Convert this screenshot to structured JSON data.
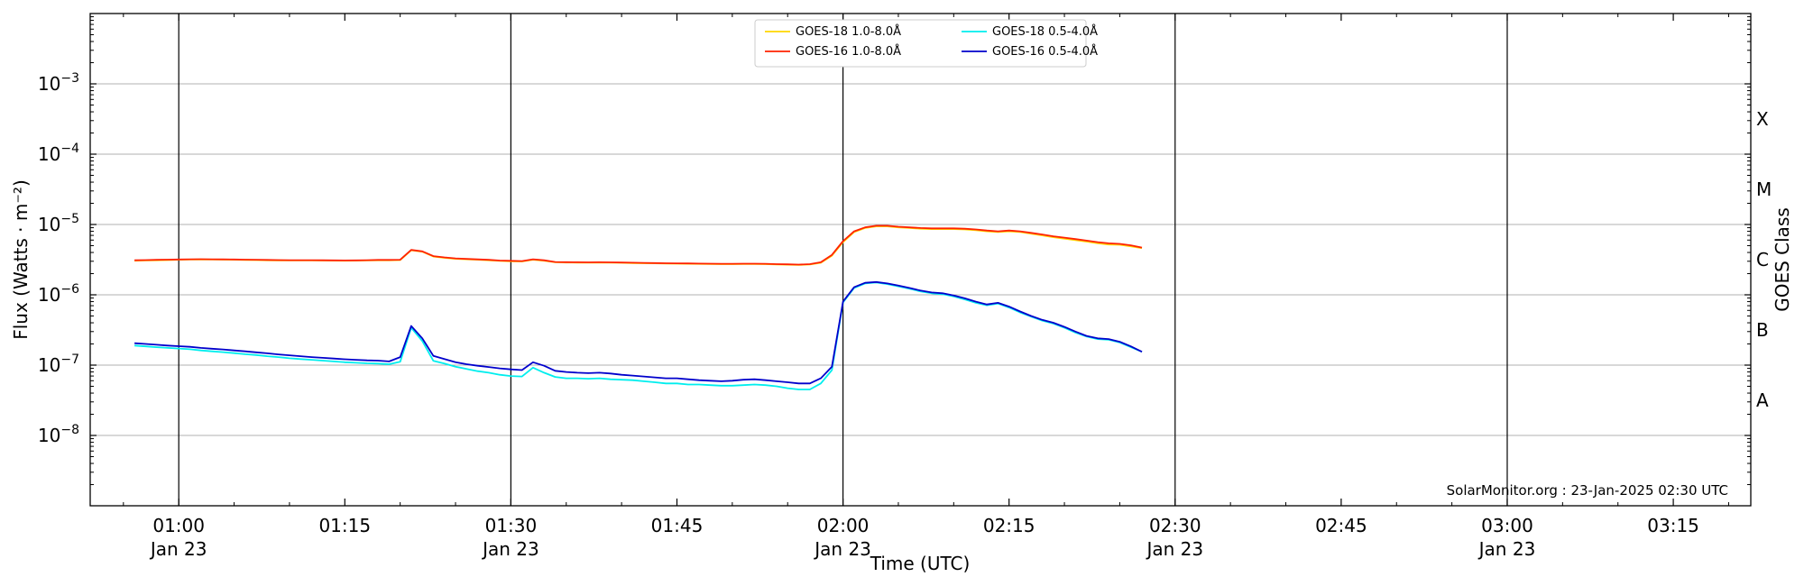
{
  "chart_data": {
    "type": "line",
    "title": "",
    "xlabel": "Time (UTC)",
    "ylabel": "Flux (Watts · m⁻²)",
    "y2label": "GOES Class",
    "yscale": "log",
    "ylim": [
      1e-09,
      0.01
    ],
    "xlim": [
      "00:52",
      "03:22"
    ],
    "grid": "horizontal",
    "legend_position": "top-center",
    "credit": "SolarMonitor.org : 23-Jan-2025 02:30 UTC",
    "y_ticks": [
      {
        "value": 1e-08,
        "base": "10",
        "exp": "−8"
      },
      {
        "value": 1e-07,
        "base": "10",
        "exp": "−7"
      },
      {
        "value": 1e-06,
        "base": "10",
        "exp": "−6"
      },
      {
        "value": 1e-05,
        "base": "10",
        "exp": "−5"
      },
      {
        "value": 0.0001,
        "base": "10",
        "exp": "−4"
      },
      {
        "value": 0.001,
        "base": "10",
        "exp": "−3"
      }
    ],
    "goes_classes": [
      {
        "label": "A",
        "value": 1e-08
      },
      {
        "label": "B",
        "value": 1e-07
      },
      {
        "label": "C",
        "value": 1e-06
      },
      {
        "label": "M",
        "value": 1e-05
      },
      {
        "label": "X",
        "value": 0.0001
      }
    ],
    "x_ticks": [
      {
        "time": "01:00",
        "label": "01:00",
        "sublabel": "Jan 23",
        "major": true
      },
      {
        "time": "01:15",
        "label": "01:15",
        "sublabel": "",
        "major": false
      },
      {
        "time": "01:30",
        "label": "01:30",
        "sublabel": "Jan 23",
        "major": true
      },
      {
        "time": "01:45",
        "label": "01:45",
        "sublabel": "",
        "major": false
      },
      {
        "time": "02:00",
        "label": "02:00",
        "sublabel": "Jan 23",
        "major": true
      },
      {
        "time": "02:15",
        "label": "02:15",
        "sublabel": "",
        "major": false
      },
      {
        "time": "02:30",
        "label": "02:30",
        "sublabel": "Jan 23",
        "major": true
      },
      {
        "time": "02:45",
        "label": "02:45",
        "sublabel": "",
        "major": false
      },
      {
        "time": "03:00",
        "label": "03:00",
        "sublabel": "Jan 23",
        "major": true
      },
      {
        "time": "03:15",
        "label": "03:15",
        "sublabel": "",
        "major": false
      }
    ],
    "x": [
      "00:56",
      "00:57",
      "00:58",
      "00:59",
      "01:00",
      "01:01",
      "01:02",
      "01:03",
      "01:04",
      "01:05",
      "01:06",
      "01:07",
      "01:08",
      "01:09",
      "01:10",
      "01:11",
      "01:12",
      "01:13",
      "01:14",
      "01:15",
      "01:16",
      "01:17",
      "01:18",
      "01:19",
      "01:20",
      "01:21",
      "01:22",
      "01:23",
      "01:24",
      "01:25",
      "01:26",
      "01:27",
      "01:28",
      "01:29",
      "01:30",
      "01:31",
      "01:32",
      "01:33",
      "01:34",
      "01:35",
      "01:36",
      "01:37",
      "01:38",
      "01:39",
      "01:40",
      "01:41",
      "01:42",
      "01:43",
      "01:44",
      "01:45",
      "01:46",
      "01:47",
      "01:48",
      "01:49",
      "01:50",
      "01:51",
      "01:52",
      "01:53",
      "01:54",
      "01:55",
      "01:56",
      "01:57",
      "01:58",
      "01:59",
      "02:00",
      "02:01",
      "02:02",
      "02:03",
      "02:04",
      "02:05",
      "02:06",
      "02:07",
      "02:08",
      "02:09",
      "02:10",
      "02:11",
      "02:12",
      "02:13",
      "02:14",
      "02:15",
      "02:16",
      "02:17",
      "02:18",
      "02:19",
      "02:20",
      "02:21",
      "02:22",
      "02:23",
      "02:24",
      "02:25",
      "02:26",
      "02:27"
    ],
    "series": [
      {
        "name": "GOES-18 1.0-8.0Å",
        "color": "#ffd700",
        "values": [
          3.05e-06,
          3.08e-06,
          3.1e-06,
          3.12e-06,
          3.15e-06,
          3.17e-06,
          3.18e-06,
          3.17e-06,
          3.16e-06,
          3.15e-06,
          3.13e-06,
          3.12e-06,
          3.1e-06,
          3.09e-06,
          3.08e-06,
          3.08e-06,
          3.08e-06,
          3.07e-06,
          3.06e-06,
          3.05e-06,
          3.06e-06,
          3.08e-06,
          3.1e-06,
          3.1e-06,
          3.12e-06,
          4.3e-06,
          4.1e-06,
          3.5e-06,
          3.35e-06,
          3.25e-06,
          3.2e-06,
          3.15e-06,
          3.1e-06,
          3.03e-06,
          3e-06,
          2.98e-06,
          3.15e-06,
          3.05e-06,
          2.9e-06,
          2.88e-06,
          2.87e-06,
          2.86e-06,
          2.87e-06,
          2.86e-06,
          2.85e-06,
          2.83e-06,
          2.81e-06,
          2.8e-06,
          2.78e-06,
          2.77e-06,
          2.76e-06,
          2.75e-06,
          2.74e-06,
          2.73e-06,
          2.73e-06,
          2.74e-06,
          2.74e-06,
          2.73e-06,
          2.7e-06,
          2.68e-06,
          2.66e-06,
          2.7e-06,
          2.85e-06,
          3.6e-06,
          5.6e-06,
          7.8e-06,
          8.9e-06,
          9.4e-06,
          9.4e-06,
          9.1e-06,
          8.9e-06,
          8.7e-06,
          8.6e-06,
          8.6e-06,
          8.6e-06,
          8.5e-06,
          8.3e-06,
          8e-06,
          7.8e-06,
          8e-06,
          7.8e-06,
          7.4e-06,
          7e-06,
          6.6e-06,
          6.3e-06,
          6e-06,
          5.7e-06,
          5.4e-06,
          5.2e-06,
          5.15e-06,
          4.9e-06,
          4.6e-06
        ]
      },
      {
        "name": "GOES-16 1.0-8.0Å",
        "color": "#ff2200",
        "values": [
          3.1e-06,
          3.12e-06,
          3.14e-06,
          3.16e-06,
          3.18e-06,
          3.2e-06,
          3.21e-06,
          3.2e-06,
          3.19e-06,
          3.18e-06,
          3.16e-06,
          3.15e-06,
          3.13e-06,
          3.12e-06,
          3.11e-06,
          3.11e-06,
          3.11e-06,
          3.1e-06,
          3.09e-06,
          3.08e-06,
          3.09e-06,
          3.11e-06,
          3.13e-06,
          3.13e-06,
          3.15e-06,
          4.35e-06,
          4.15e-06,
          3.55e-06,
          3.4e-06,
          3.3e-06,
          3.24e-06,
          3.19e-06,
          3.14e-06,
          3.07e-06,
          3.04e-06,
          3.02e-06,
          3.2e-06,
          3.1e-06,
          2.93e-06,
          2.91e-06,
          2.9e-06,
          2.89e-06,
          2.9e-06,
          2.89e-06,
          2.88e-06,
          2.86e-06,
          2.84e-06,
          2.83e-06,
          2.81e-06,
          2.8e-06,
          2.79e-06,
          2.78e-06,
          2.77e-06,
          2.76e-06,
          2.76e-06,
          2.77e-06,
          2.77e-06,
          2.76e-06,
          2.73e-06,
          2.71e-06,
          2.69e-06,
          2.73e-06,
          2.9e-06,
          3.7e-06,
          5.8e-06,
          8e-06,
          9.1e-06,
          9.6e-06,
          9.6e-06,
          9.3e-06,
          9.1e-06,
          8.9e-06,
          8.8e-06,
          8.8e-06,
          8.8e-06,
          8.7e-06,
          8.5e-06,
          8.2e-06,
          8e-06,
          8.2e-06,
          8e-06,
          7.6e-06,
          7.2e-06,
          6.8e-06,
          6.5e-06,
          6.2e-06,
          5.9e-06,
          5.6e-06,
          5.4e-06,
          5.3e-06,
          5.05e-06,
          4.7e-06
        ]
      },
      {
        "name": "GOES-18 0.5-4.0Å",
        "color": "#00eeee",
        "values": [
          1.9e-07,
          1.85e-07,
          1.8e-07,
          1.76e-07,
          1.72e-07,
          1.68e-07,
          1.62e-07,
          1.57e-07,
          1.53e-07,
          1.48e-07,
          1.43e-07,
          1.39e-07,
          1.34e-07,
          1.3e-07,
          1.25e-07,
          1.22e-07,
          1.19e-07,
          1.16e-07,
          1.13e-07,
          1.1e-07,
          1.08e-07,
          1.06e-07,
          1.05e-07,
          1.03e-07,
          1.12e-07,
          3.4e-07,
          2.2e-07,
          1.15e-07,
          1.05e-07,
          9.5e-08,
          8.8e-08,
          8.2e-08,
          7.8e-08,
          7.3e-08,
          7e-08,
          6.9e-08,
          9.2e-08,
          7.8e-08,
          6.8e-08,
          6.5e-08,
          6.5e-08,
          6.4e-08,
          6.5e-08,
          6.3e-08,
          6.2e-08,
          6.1e-08,
          5.9e-08,
          5.7e-08,
          5.5e-08,
          5.5e-08,
          5.3e-08,
          5.3e-08,
          5.2e-08,
          5.1e-08,
          5.1e-08,
          5.2e-08,
          5.3e-08,
          5.2e-08,
          5e-08,
          4.7e-08,
          4.5e-08,
          4.5e-08,
          5.5e-08,
          8.5e-08,
          7.8e-07,
          1.25e-06,
          1.45e-06,
          1.5e-06,
          1.42e-06,
          1.32e-06,
          1.22e-06,
          1.12e-06,
          1.05e-06,
          1.02e-06,
          9.5e-07,
          8.6e-07,
          7.7e-07,
          7.1e-07,
          7.5e-07,
          6.6e-07,
          5.6e-07,
          4.9e-07,
          4.3e-07,
          3.9e-07,
          3.4e-07,
          2.9e-07,
          2.55e-07,
          2.35e-07,
          2.3e-07,
          2.1e-07,
          1.8e-07,
          1.55e-07
        ]
      },
      {
        "name": "GOES-16 0.5-4.0Å",
        "color": "#0000cc",
        "values": [
          2.05e-07,
          2e-07,
          1.95e-07,
          1.9e-07,
          1.86e-07,
          1.82e-07,
          1.76e-07,
          1.71e-07,
          1.67e-07,
          1.62e-07,
          1.57e-07,
          1.52e-07,
          1.47e-07,
          1.42e-07,
          1.38e-07,
          1.34e-07,
          1.3e-07,
          1.27e-07,
          1.24e-07,
          1.21e-07,
          1.19e-07,
          1.17e-07,
          1.16e-07,
          1.13e-07,
          1.3e-07,
          3.6e-07,
          2.4e-07,
          1.35e-07,
          1.22e-07,
          1.1e-07,
          1.03e-07,
          9.8e-08,
          9.4e-08,
          9e-08,
          8.7e-08,
          8.5e-08,
          1.1e-07,
          9.8e-08,
          8.3e-08,
          8e-08,
          7.8e-08,
          7.7e-08,
          7.8e-08,
          7.6e-08,
          7.3e-08,
          7.1e-08,
          6.9e-08,
          6.7e-08,
          6.5e-08,
          6.5e-08,
          6.3e-08,
          6.1e-08,
          6e-08,
          5.9e-08,
          6e-08,
          6.2e-08,
          6.3e-08,
          6.1e-08,
          5.9e-08,
          5.7e-08,
          5.5e-08,
          5.5e-08,
          6.5e-08,
          9.5e-08,
          8e-07,
          1.28e-06,
          1.48e-06,
          1.52e-06,
          1.45e-06,
          1.35e-06,
          1.25e-06,
          1.15e-06,
          1.08e-06,
          1.05e-06,
          9.8e-07,
          8.9e-07,
          8e-07,
          7.3e-07,
          7.7e-07,
          6.8e-07,
          5.8e-07,
          5e-07,
          4.4e-07,
          4e-07,
          3.5e-07,
          3e-07,
          2.6e-07,
          2.4e-07,
          2.35e-07,
          2.15e-07,
          1.85e-07,
          1.55e-07
        ]
      }
    ],
    "legend_order": [
      0,
      2,
      1,
      3
    ]
  }
}
